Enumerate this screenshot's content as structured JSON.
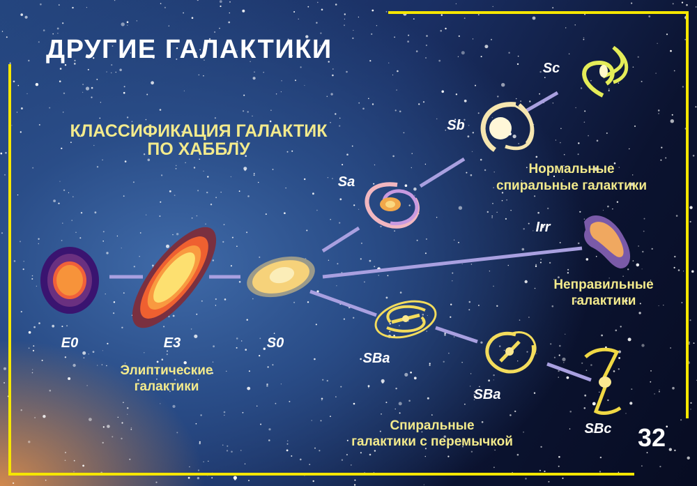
{
  "title": "ДРУГИЕ ГАЛАКТИКИ",
  "subtitle": [
    "КЛАССИФИКАЦИЯ ГАЛАКТИК",
    "ПО ХАББЛУ"
  ],
  "page_number": "32",
  "galaxies": {
    "e0": "E0",
    "e3": "E3",
    "s0": "S0",
    "sa": "Sa",
    "sb": "Sb",
    "sc": "Sc",
    "irr": "Irr",
    "sba1": "SBa",
    "sba2": "SBa",
    "sbc": "SBc"
  },
  "groups": {
    "elliptical": [
      "Элиптические",
      "галактики"
    ],
    "normal_spiral": [
      "Нормальные",
      "спиральные галактики"
    ],
    "irregular": [
      "Неправильные",
      "галактики"
    ],
    "barred_spiral": [
      "Спиральные",
      "галактики с перемычкой"
    ]
  },
  "colors": {
    "frame": "#f5e600",
    "caption": "#f3ea8c",
    "connector": "#a9a0e0",
    "title": "#ffffff"
  }
}
